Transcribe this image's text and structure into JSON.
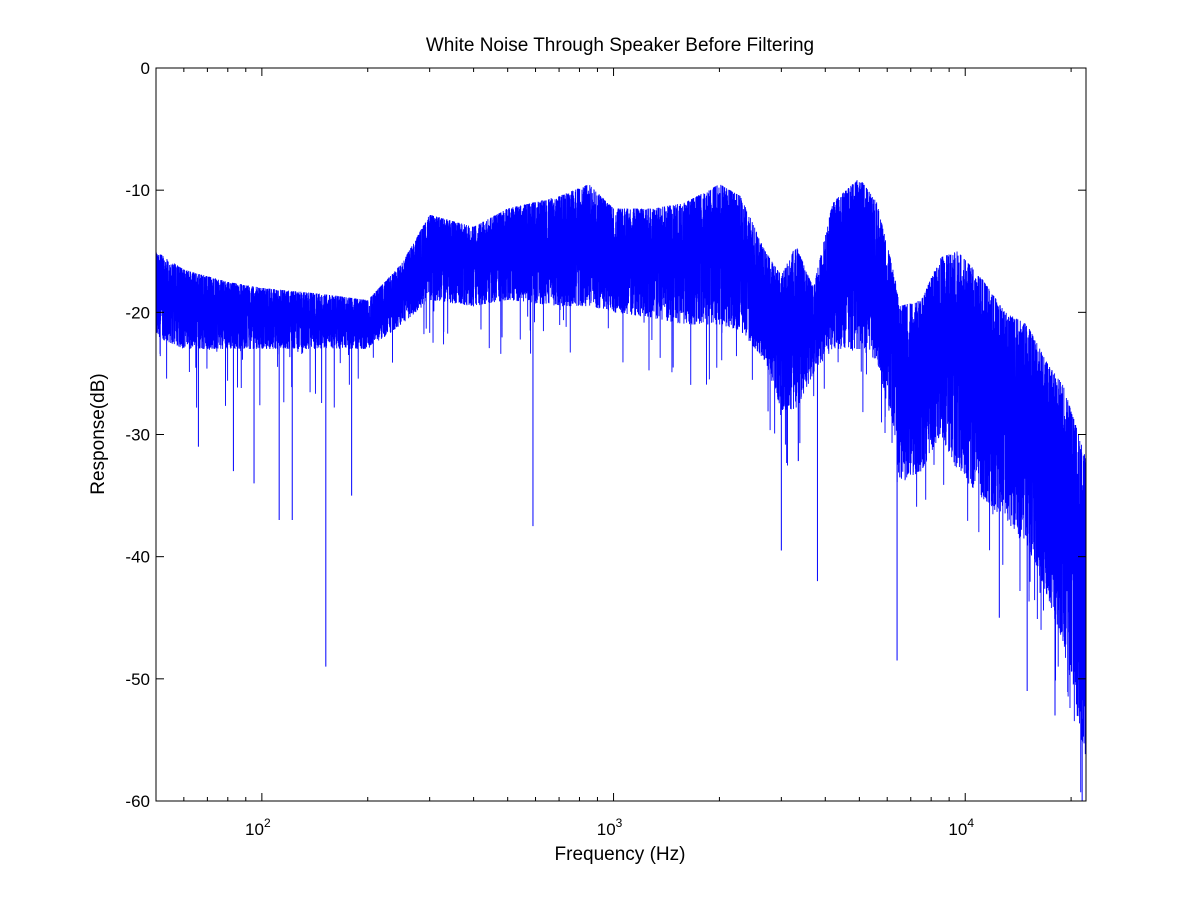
{
  "chart_data": {
    "type": "line",
    "title": "White Noise Through Speaker Before Filtering",
    "xlabel": "Frequency (Hz)",
    "ylabel": "Response(dB)",
    "xscale": "log",
    "xlim": [
      50,
      22050
    ],
    "ylim": [
      -60,
      0
    ],
    "xtick_labels": [
      {
        "value": 100,
        "base": "10",
        "exp": "2"
      },
      {
        "value": 1000,
        "base": "10",
        "exp": "3"
      },
      {
        "value": 10000,
        "base": "10",
        "exp": "4"
      }
    ],
    "ytick_labels": [
      "0",
      "-10",
      "-20",
      "-30",
      "-40",
      "-50",
      "-60"
    ],
    "ytick_values": [
      0,
      -10,
      -20,
      -30,
      -40,
      -50,
      -60
    ],
    "grid": false,
    "series": [
      {
        "name": "response",
        "color": "#0000ff",
        "envelope": {
          "freq_hz": [
            50,
            60,
            80,
            100,
            150,
            200,
            250,
            300,
            400,
            500,
            700,
            850,
            1000,
            1300,
            1600,
            2000,
            2300,
            2700,
            3000,
            3300,
            3700,
            4200,
            5000,
            5600,
            6300,
            6500,
            7500,
            8500,
            9500,
            11000,
            13000,
            15000,
            17000,
            19000,
            20500,
            22050
          ],
          "upper_db": [
            -15,
            -16.5,
            -17.5,
            -18,
            -18.5,
            -19,
            -16,
            -12,
            -13,
            -11.5,
            -10.5,
            -9.5,
            -11.5,
            -11.5,
            -11,
            -9.5,
            -10.5,
            -15,
            -17,
            -14.5,
            -18,
            -11,
            -9,
            -11,
            -17,
            -19.5,
            -19,
            -15.5,
            -15,
            -17,
            -20,
            -21,
            -24,
            -26,
            -29,
            -32
          ],
          "lower_db": [
            -22,
            -23,
            -23,
            -23,
            -23,
            -23,
            -21,
            -19,
            -19.5,
            -19,
            -19.5,
            -19.5,
            -20,
            -20.5,
            -21,
            -21,
            -21.5,
            -24,
            -28,
            -28,
            -25,
            -23,
            -23,
            -24,
            -30,
            -34,
            -33,
            -30,
            -33,
            -35,
            -37,
            -39,
            -43,
            -47,
            -52,
            -57
          ]
        },
        "notable_dips_db": [
          {
            "freq_hz": 66,
            "db": -31
          },
          {
            "freq_hz": 83,
            "db": -33
          },
          {
            "freq_hz": 95,
            "db": -34
          },
          {
            "freq_hz": 112,
            "db": -37
          },
          {
            "freq_hz": 122,
            "db": -37
          },
          {
            "freq_hz": 152,
            "db": -49
          },
          {
            "freq_hz": 180,
            "db": -35
          },
          {
            "freq_hz": 590,
            "db": -37.5
          },
          {
            "freq_hz": 3000,
            "db": -39.5
          },
          {
            "freq_hz": 3800,
            "db": -42
          },
          {
            "freq_hz": 6400,
            "db": -48.5
          },
          {
            "freq_hz": 12500,
            "db": -45
          },
          {
            "freq_hz": 15000,
            "db": -51
          },
          {
            "freq_hz": 18000,
            "db": -53
          },
          {
            "freq_hz": 21500,
            "db": -60
          }
        ]
      }
    ]
  }
}
